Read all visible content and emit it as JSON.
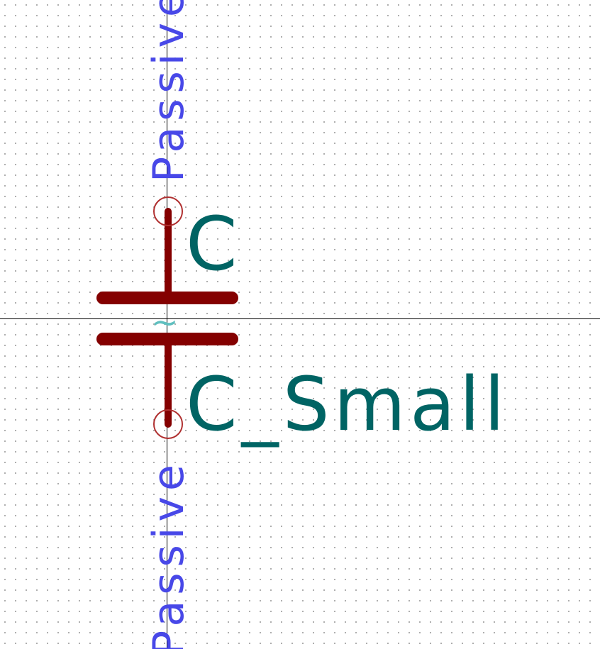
{
  "editor": {
    "view": "symbol-editor-canvas",
    "grid": "dotted"
  },
  "symbol": {
    "reference": "C",
    "value": "C_Small",
    "pin_top_type": "Passive",
    "pin_bottom_type": "Passive",
    "anchor_glyph": "~"
  },
  "colors": {
    "background": "#ffffff",
    "body": "#840000",
    "pin_circle": "#b03030",
    "field_text": "#006464",
    "pin_text": "#4848e8",
    "anchor": "#5fbfbf",
    "crosshair": "#000000"
  }
}
